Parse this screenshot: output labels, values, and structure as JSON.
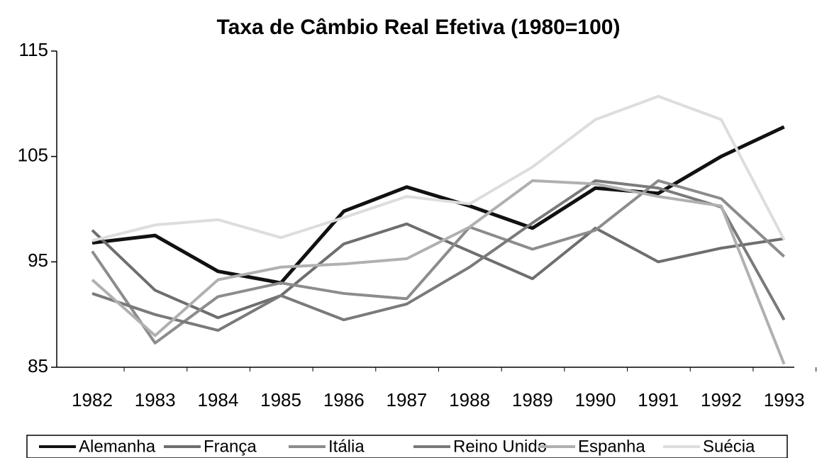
{
  "chart_data": {
    "type": "line",
    "title": "Taxa de Câmbio Real Efetiva (1980=100)",
    "categories": [
      "1982",
      "1983",
      "1984",
      "1985",
      "1986",
      "1987",
      "1988",
      "1989",
      "1990",
      "1991",
      "1992",
      "1993"
    ],
    "ylim": [
      85,
      115
    ],
    "yticks": [
      85,
      95,
      105,
      115
    ],
    "series": [
      {
        "name": "Alemanha",
        "color": "#111111",
        "values": [
          96.8,
          97.5,
          94.1,
          93.0,
          99.8,
          102.1,
          100.3,
          98.2,
          102.0,
          101.5,
          105.0,
          107.8
        ]
      },
      {
        "name": "França",
        "color": "#6e6e6e",
        "values": [
          98.0,
          92.3,
          89.7,
          91.8,
          96.7,
          98.6,
          96.0,
          93.4,
          98.2,
          95.0,
          96.3,
          97.2
        ]
      },
      {
        "name": "Itália",
        "color": "#8c8c8c",
        "values": [
          96.0,
          87.3,
          91.7,
          93.0,
          92.0,
          91.5,
          98.3,
          96.2,
          98.0,
          102.7,
          101.0,
          95.5
        ]
      },
      {
        "name": "Reino Unido",
        "color": "#7a7a7a",
        "values": [
          92.0,
          90.0,
          88.5,
          91.8,
          89.5,
          91.0,
          94.5,
          98.7,
          102.7,
          102.0,
          100.2,
          89.5
        ]
      },
      {
        "name": "Espanha",
        "color": "#b0b0b0",
        "values": [
          93.3,
          88.0,
          93.3,
          94.5,
          94.8,
          95.3,
          98.3,
          102.7,
          102.4,
          101.2,
          100.3,
          85.3
        ]
      },
      {
        "name": "Suécia",
        "color": "#dddddd",
        "values": [
          97.0,
          98.5,
          99.0,
          97.3,
          99.2,
          101.2,
          100.5,
          104.0,
          108.5,
          110.7,
          108.5,
          97.1
        ]
      }
    ]
  }
}
